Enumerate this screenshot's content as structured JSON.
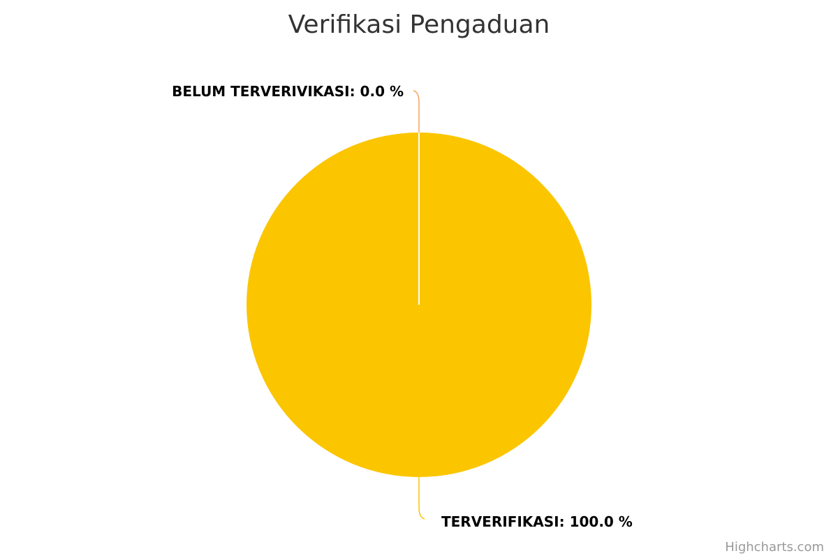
{
  "chart_data": {
    "type": "pie",
    "title": "Verifikasi Pengaduan",
    "label_format": "{name}: {value} %",
    "slices": [
      {
        "name": "TERVERIFIKASI",
        "value": 100.0,
        "color": "#FBC500"
      },
      {
        "name": "BELUM TERVERIVIKASI",
        "value": 0.0,
        "color": "#F7A35C"
      }
    ],
    "slice_border_color": "#ffffff",
    "legend": false
  },
  "credits": "Highcharts.com"
}
